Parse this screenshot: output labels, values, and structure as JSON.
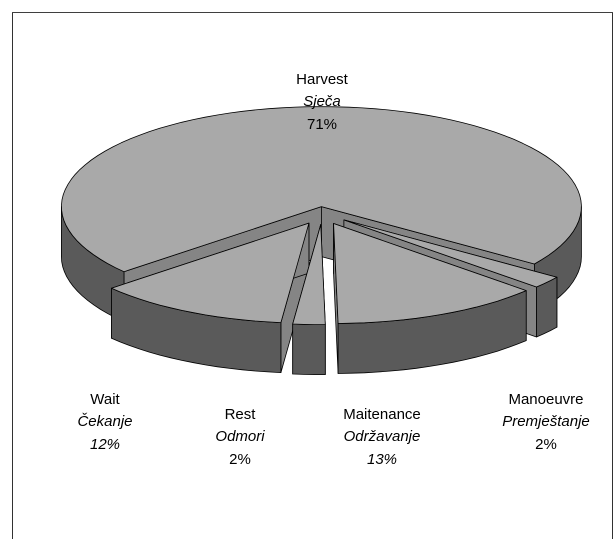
{
  "chart_data": {
    "type": "pie3d",
    "categories": [
      "Manoeuvre",
      "Maitenance",
      "Rest",
      "Wait",
      "Harvest"
    ],
    "translations": [
      "Premještanje",
      "Održavanje",
      "Odmori",
      "Čekanje",
      "Sječa"
    ],
    "values": [
      2,
      13,
      2,
      12,
      71
    ],
    "value_labels": [
      "2%",
      "13%",
      "2%",
      "12%",
      "71%"
    ],
    "top_color": "#a9a9a9",
    "side_color": "#5a5a5a",
    "cut_color": "#858585"
  }
}
